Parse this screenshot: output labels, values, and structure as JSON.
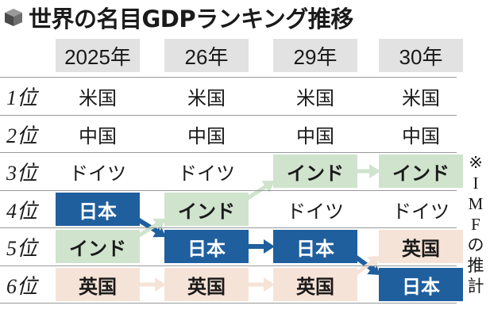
{
  "title": "世界の名目GDPランキング推移",
  "note": "※IMFの推計",
  "colors": {
    "japan_fill": "#1f5f9e",
    "japan_text": "#ffffff",
    "india_fill": "#cfe3cd",
    "uk_fill": "#f6e3d7",
    "header_fill": "#e2e2e2",
    "japan_arrow": "#1f5f9e",
    "india_arrow": "#cfe3cd",
    "uk_arrow": "#f6e3d7"
  },
  "chart_data": {
    "type": "table",
    "columns": [
      "2025年",
      "26年",
      "29年",
      "30年"
    ],
    "row_labels": [
      "1位",
      "2位",
      "3位",
      "4位",
      "5位",
      "6位"
    ],
    "rows": [
      [
        "米国",
        "米国",
        "米国",
        "米国"
      ],
      [
        "中国",
        "中国",
        "中国",
        "中国"
      ],
      [
        "ドイツ",
        "ドイツ",
        "インド",
        "インド"
      ],
      [
        "日本",
        "インド",
        "ドイツ",
        "ドイツ"
      ],
      [
        "インド",
        "日本",
        "日本",
        "英国"
      ],
      [
        "英国",
        "英国",
        "英国",
        "日本"
      ]
    ],
    "highlighted": {
      "日本": "japan",
      "インド": "india",
      "英国": "uk"
    }
  }
}
